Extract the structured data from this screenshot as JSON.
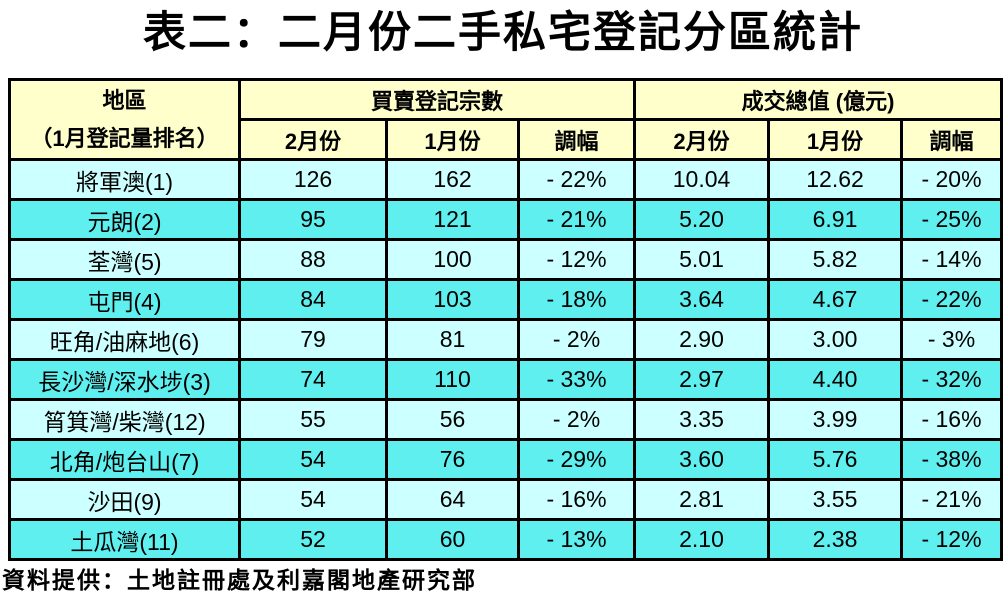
{
  "title": "表二：二月份二手私宅登記分區統計",
  "footer": "資料提供：土地註冊處及利嘉閣地產研究部",
  "colors": {
    "header_bg": "#FFFFCC",
    "row_light": "#CCFFFF",
    "row_dark": "#5FEFEF",
    "grid": "#000000"
  },
  "table": {
    "header": {
      "region_title": "地區",
      "region_subtitle": "（1月登記量排名）",
      "group1": "買賣登記宗數",
      "group2": "成交總值 (億元)",
      "sub_columns": [
        "2月份",
        "1月份",
        "調幅"
      ]
    },
    "rows": [
      {
        "region": "將軍澳(1)",
        "cells": [
          "126",
          "162",
          "- 22%",
          "10.04",
          "12.62",
          "- 20%"
        ]
      },
      {
        "region": "元朗(2)",
        "cells": [
          "95",
          "121",
          "- 21%",
          "5.20",
          "6.91",
          "- 25%"
        ]
      },
      {
        "region": "荃灣(5)",
        "cells": [
          "88",
          "100",
          "- 12%",
          "5.01",
          "5.82",
          "- 14%"
        ]
      },
      {
        "region": "屯門(4)",
        "cells": [
          "84",
          "103",
          "- 18%",
          "3.64",
          "4.67",
          "- 22%"
        ]
      },
      {
        "region": "旺角/油麻地(6)",
        "cells": [
          "79",
          "81",
          "- 2%",
          "2.90",
          "3.00",
          "- 3%"
        ]
      },
      {
        "region": "長沙灣/深水埗(3)",
        "cells": [
          "74",
          "110",
          "- 33%",
          "2.97",
          "4.40",
          "- 32%"
        ]
      },
      {
        "region": "筲箕灣/柴灣(12)",
        "cells": [
          "55",
          "56",
          "- 2%",
          "3.35",
          "3.99",
          "- 16%"
        ]
      },
      {
        "region": "北角/炮台山(7)",
        "cells": [
          "54",
          "76",
          "- 29%",
          "3.60",
          "5.76",
          "- 38%"
        ]
      },
      {
        "region": "沙田(9)",
        "cells": [
          "54",
          "64",
          "- 16%",
          "2.81",
          "3.55",
          "- 21%"
        ]
      },
      {
        "region": "土瓜灣(11)",
        "cells": [
          "52",
          "60",
          "- 13%",
          "2.10",
          "2.38",
          "- 12%"
        ]
      }
    ]
  },
  "chart_data": {
    "type": "table",
    "title": "表二：二月份二手私宅登記分區統計",
    "columns": [
      "地區（1月登記量排名）",
      "買賣登記宗數 2月份",
      "買賣登記宗數 1月份",
      "買賣登記宗數 調幅",
      "成交總值(億元) 2月份",
      "成交總值(億元) 1月份",
      "成交總值(億元) 調幅"
    ],
    "rows": [
      [
        "將軍澳(1)",
        126,
        162,
        "-22%",
        10.04,
        12.62,
        "-20%"
      ],
      [
        "元朗(2)",
        95,
        121,
        "-21%",
        5.2,
        6.91,
        "-25%"
      ],
      [
        "荃灣(5)",
        88,
        100,
        "-12%",
        5.01,
        5.82,
        "-14%"
      ],
      [
        "屯門(4)",
        84,
        103,
        "-18%",
        3.64,
        4.67,
        "-22%"
      ],
      [
        "旺角/油麻地(6)",
        79,
        81,
        "-2%",
        2.9,
        3.0,
        "-3%"
      ],
      [
        "長沙灣/深水埗(3)",
        74,
        110,
        "-33%",
        2.97,
        4.4,
        "-32%"
      ],
      [
        "筲箕灣/柴灣(12)",
        55,
        56,
        "-2%",
        3.35,
        3.99,
        "-16%"
      ],
      [
        "北角/炮台山(7)",
        54,
        76,
        "-29%",
        3.6,
        5.76,
        "-38%"
      ],
      [
        "沙田(9)",
        54,
        64,
        "-16%",
        2.81,
        3.55,
        "-21%"
      ],
      [
        "土瓜灣(11)",
        52,
        60,
        "-13%",
        2.1,
        2.38,
        "-12%"
      ]
    ],
    "source": "資料提供：土地註冊處及利嘉閣地產研究部"
  }
}
